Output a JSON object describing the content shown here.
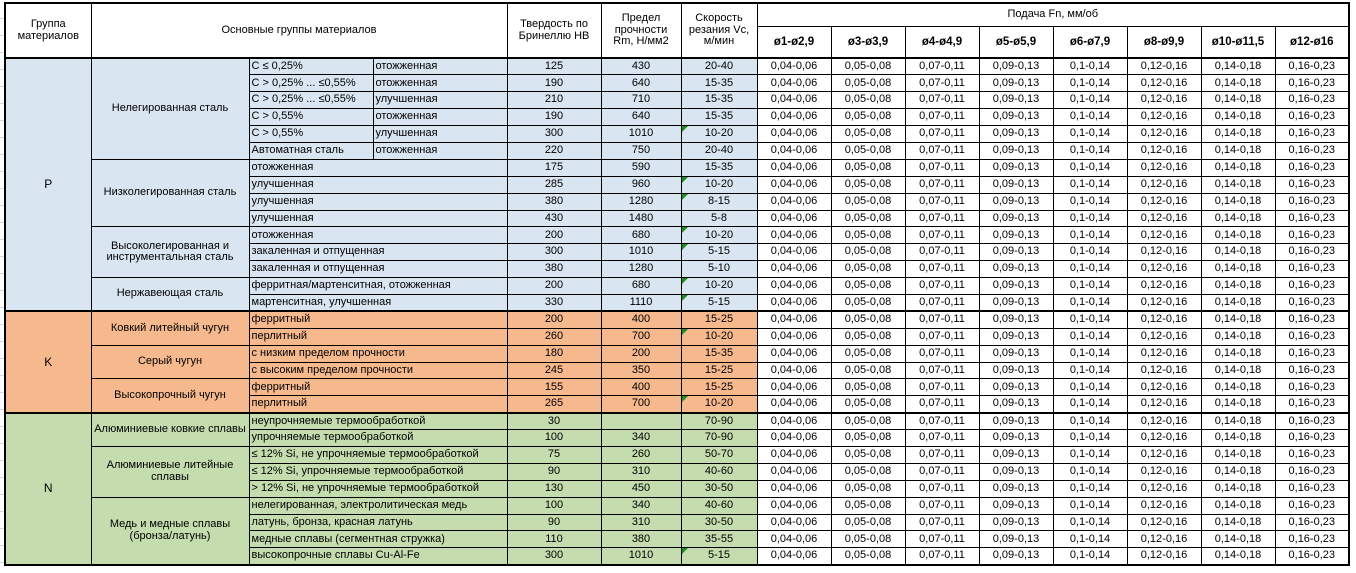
{
  "colors": {
    "group_p_bg": "#D9E5F1",
    "group_k_bg": "#F6B98E",
    "group_n_bg": "#C4DCAE",
    "flag_green": "#1E8C1E",
    "grid_border": "#000000"
  },
  "table": {
    "header": {
      "group": "Группа материалов",
      "materials": "Основные группы материалов",
      "hardness": "Твердость по Бринеллю HB",
      "strength": "Предел прочности Rm, Н/мм2",
      "speed": "Скорость резания Vc, м/мин",
      "feed": "Подача Fn, мм/об",
      "feed_columns": [
        "ø1-ø2,9",
        "ø3-ø3,9",
        "ø4-ø4,9",
        "ø5-ø5,9",
        "ø6-ø7,9",
        "ø8-ø9,9",
        "ø10-ø11,5",
        "ø12-ø16"
      ]
    },
    "feed_values": [
      "0,04-0,06",
      "0,05-0,08",
      "0,07-0,11",
      "0,09-0,13",
      "0,1-0,14",
      "0,12-0,16",
      "0,14-0,18",
      "0,16-0,23"
    ],
    "groups": [
      {
        "code": "P",
        "subgroups": [
          {
            "name": "Нелегированная сталь",
            "rows": [
              {
                "qualifier": "C ≤ 0,25%",
                "state": "отожженная",
                "hb": "125",
                "rm": "430",
                "vc": "20-40",
                "flag": false
              },
              {
                "qualifier": "C > 0,25% ... ≤0,55%",
                "state": "отожженная",
                "hb": "190",
                "rm": "640",
                "vc": "15-35",
                "flag": false
              },
              {
                "qualifier": "C > 0,25% ... ≤0,55%",
                "state": "улучшенная",
                "hb": "210",
                "rm": "710",
                "vc": "15-35",
                "flag": false
              },
              {
                "qualifier": "C > 0,55%",
                "state": "отожженная",
                "hb": "190",
                "rm": "640",
                "vc": "15-35",
                "flag": false
              },
              {
                "qualifier": "C > 0,55%",
                "state": "улучшенная",
                "hb": "300",
                "rm": "1010",
                "vc": "10-20",
                "flag": true
              },
              {
                "qualifier": "Автоматная сталь",
                "state": "отожженная",
                "hb": "220",
                "rm": "750",
                "vc": "20-40",
                "flag": false
              }
            ]
          },
          {
            "name": "Низколегированная сталь",
            "rows": [
              {
                "detail": "отожженная",
                "hb": "175",
                "rm": "590",
                "vc": "15-35",
                "flag": false
              },
              {
                "detail": "улучшенная",
                "hb": "285",
                "rm": "960",
                "vc": "10-20",
                "flag": true
              },
              {
                "detail": "улучшенная",
                "hb": "380",
                "rm": "1280",
                "vc": "8-15",
                "flag": true
              },
              {
                "detail": "улучшенная",
                "hb": "430",
                "rm": "1480",
                "vc": "5-8",
                "flag": false
              }
            ]
          },
          {
            "name": "Высоколегированная и инструментальная сталь",
            "rows": [
              {
                "detail": "отожженная",
                "hb": "200",
                "rm": "680",
                "vc": "10-20",
                "flag": true
              },
              {
                "detail": "закаленная и отпущенная",
                "hb": "300",
                "rm": "1010",
                "vc": "5-15",
                "flag": true
              },
              {
                "detail": "закаленная и отпущенная",
                "hb": "380",
                "rm": "1280",
                "vc": "5-10",
                "flag": false
              }
            ]
          },
          {
            "name": "Нержавеющая сталь",
            "rows": [
              {
                "detail": "ферритная/мартенситная, отожженная",
                "hb": "200",
                "rm": "680",
                "vc": "10-20",
                "flag": true
              },
              {
                "detail": "мартенситная, улучшенная",
                "hb": "330",
                "rm": "1110",
                "vc": "5-15",
                "flag": true
              }
            ]
          }
        ]
      },
      {
        "code": "K",
        "subgroups": [
          {
            "name": "Ковкий литейный чугун",
            "rows": [
              {
                "detail": "ферритный",
                "hb": "200",
                "rm": "400",
                "vc": "15-25",
                "flag": false
              },
              {
                "detail": "перлитный",
                "hb": "260",
                "rm": "700",
                "vc": "10-20",
                "flag": true
              }
            ]
          },
          {
            "name": "Серый чугун",
            "rows": [
              {
                "detail": "с низким пределом прочности",
                "hb": "180",
                "rm": "200",
                "vc": "15-35",
                "flag": false
              },
              {
                "detail": "с высоким пределом прочности",
                "hb": "245",
                "rm": "350",
                "vc": "15-25",
                "flag": false
              }
            ]
          },
          {
            "name": "Высокопрочный чугун",
            "rows": [
              {
                "detail": "ферритный",
                "hb": "155",
                "rm": "400",
                "vc": "15-25",
                "flag": false
              },
              {
                "detail": "перлитный",
                "hb": "265",
                "rm": "700",
                "vc": "10-20",
                "flag": true
              }
            ]
          }
        ]
      },
      {
        "code": "N",
        "subgroups": [
          {
            "name": "Алюминиевые ковкие сплавы",
            "rows": [
              {
                "detail": "неупрочняемые термообработкой",
                "hb": "30",
                "rm": "",
                "vc": "70-90",
                "flag": false
              },
              {
                "detail": "упрочняемые термообработкой",
                "hb": "100",
                "rm": "340",
                "vc": "70-90",
                "flag": false
              }
            ]
          },
          {
            "name": "Алюминиевые литейные сплавы",
            "rows": [
              {
                "detail": "≤ 12% Si, не упрочняемые термообработкой",
                "hb": "75",
                "rm": "260",
                "vc": "50-70",
                "flag": false
              },
              {
                "detail": "≤ 12% Si, упрочняемые термообработкой",
                "hb": "90",
                "rm": "310",
                "vc": "40-60",
                "flag": false
              },
              {
                "detail": "> 12% Si, не упрочняемые термообработкой",
                "hb": "130",
                "rm": "450",
                "vc": "30-50",
                "flag": false
              }
            ]
          },
          {
            "name": "Медь и медные сплавы (бронза/латунь)",
            "rows": [
              {
                "detail": "нелегированная, электролитическая медь",
                "hb": "100",
                "rm": "340",
                "vc": "40-60",
                "flag": false
              },
              {
                "detail": "латунь, бронза, красная латунь",
                "hb": "90",
                "rm": "310",
                "vc": "30-50",
                "flag": false
              },
              {
                "detail": "медные сплавы (сегментная стружка)",
                "hb": "110",
                "rm": "380",
                "vc": "35-55",
                "flag": false
              },
              {
                "detail": "высокопрочные сплавы Cu-Al-Fe",
                "hb": "300",
                "rm": "1010",
                "vc": "5-15",
                "flag": true
              }
            ]
          }
        ]
      }
    ]
  }
}
